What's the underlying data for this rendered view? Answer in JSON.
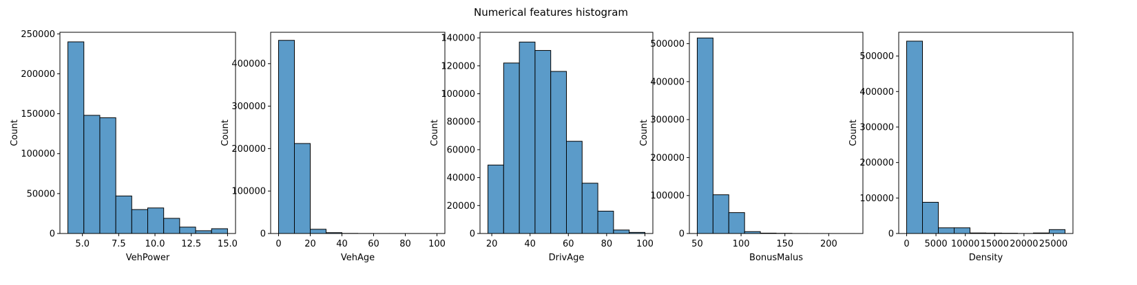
{
  "title": "Numerical features histogram",
  "bar_color": "#5b9bc9",
  "edge_color": "#000000",
  "chart_data": [
    {
      "type": "bar",
      "xlabel": "VehPower",
      "ylabel": "Count",
      "xlim": [
        3.45,
        15.55
      ],
      "ylim": [
        0,
        252000
      ],
      "xticks": [
        5.0,
        7.5,
        10.0,
        12.5,
        15.0
      ],
      "xtick_labels": [
        "5.0",
        "7.5",
        "10.0",
        "12.5",
        "15.0"
      ],
      "yticks": [
        0,
        50000,
        100000,
        150000,
        200000,
        250000
      ],
      "bin_edges": [
        4,
        5.1,
        6.2,
        7.3,
        8.4,
        9.5,
        10.6,
        11.7,
        12.8,
        13.9,
        15
      ],
      "counts": [
        240000,
        148000,
        145000,
        47000,
        30000,
        32000,
        19000,
        8000,
        3500,
        6000
      ]
    },
    {
      "type": "bar",
      "xlabel": "VehAge",
      "ylabel": "Count",
      "xlim": [
        -5,
        105
      ],
      "ylim": [
        0,
        474000
      ],
      "xticks": [
        0,
        20,
        40,
        60,
        80,
        100
      ],
      "xtick_labels": [
        "0",
        "20",
        "40",
        "60",
        "80",
        "100"
      ],
      "yticks": [
        0,
        100000,
        200000,
        300000,
        400000
      ],
      "bin_edges": [
        0,
        10,
        20,
        30,
        40,
        50,
        60,
        70,
        80,
        90,
        100
      ],
      "counts": [
        455000,
        212000,
        10000,
        2000,
        300,
        100,
        50,
        30,
        20,
        10
      ]
    },
    {
      "type": "bar",
      "xlabel": "DrivAge",
      "ylabel": "Count",
      "xlim": [
        13.85,
        104.15
      ],
      "ylim": [
        0,
        144000
      ],
      "xticks": [
        20,
        40,
        60,
        80,
        100
      ],
      "xtick_labels": [
        "20",
        "40",
        "60",
        "80",
        "100"
      ],
      "yticks": [
        0,
        20000,
        40000,
        60000,
        80000,
        100000,
        120000,
        140000
      ],
      "bin_edges": [
        18,
        26.2,
        34.4,
        42.6,
        50.8,
        59,
        67.2,
        75.4,
        83.6,
        91.8,
        100
      ],
      "counts": [
        49000,
        122000,
        137000,
        131000,
        116000,
        66000,
        36000,
        16000,
        2500,
        800
      ]
    },
    {
      "type": "bar",
      "xlabel": "BonusMalus",
      "ylabel": "Count",
      "xlim": [
        41,
        239
      ],
      "ylim": [
        0,
        530000
      ],
      "xticks": [
        50,
        100,
        150,
        200
      ],
      "xtick_labels": [
        "50",
        "100",
        "150",
        "200"
      ],
      "yticks": [
        0,
        100000,
        200000,
        300000,
        400000,
        500000
      ],
      "bin_edges": [
        50,
        68,
        86,
        104,
        122,
        140,
        158,
        176,
        194,
        212,
        230
      ],
      "counts": [
        515000,
        102000,
        55000,
        5000,
        1000,
        500,
        100,
        50,
        30,
        10
      ]
    },
    {
      "type": "bar",
      "xlabel": "Density",
      "ylabel": "Count",
      "xlim": [
        -1350,
        28350
      ],
      "ylim": [
        0,
        567000
      ],
      "xticks": [
        0,
        5000,
        10000,
        15000,
        20000,
        25000
      ],
      "xtick_labels": [
        "0",
        "5000",
        "10000",
        "15000",
        "20000",
        "25000"
      ],
      "yticks": [
        0,
        100000,
        200000,
        300000,
        400000,
        500000
      ],
      "bin_edges": [
        1,
        2700.9,
        5400.8,
        8100.7,
        10800.6,
        13500.5,
        16200.4,
        18900.3,
        21600.2,
        24300.1,
        27000
      ],
      "counts": [
        542000,
        88000,
        16000,
        16000,
        1500,
        1200,
        800,
        200,
        1500,
        11000
      ]
    }
  ]
}
